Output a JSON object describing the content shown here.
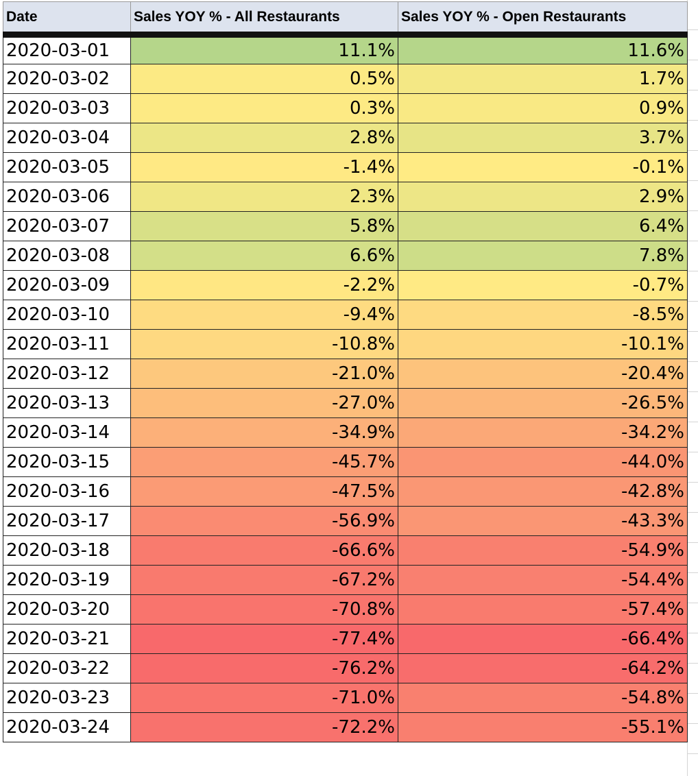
{
  "table": {
    "columns": [
      "Date",
      "Sales YOY % - All Restaurants",
      "Sales YOY % - Open Restaurants"
    ],
    "rows": [
      [
        "2020-03-01",
        "11.1%",
        "11.6%"
      ],
      [
        "2020-03-02",
        "0.5%",
        "1.7%"
      ],
      [
        "2020-03-03",
        "0.3%",
        "0.9%"
      ],
      [
        "2020-03-04",
        "2.8%",
        "3.7%"
      ],
      [
        "2020-03-05",
        "-1.4%",
        "-0.1%"
      ],
      [
        "2020-03-06",
        "2.3%",
        "2.9%"
      ],
      [
        "2020-03-07",
        "5.8%",
        "6.4%"
      ],
      [
        "2020-03-08",
        "6.6%",
        "7.8%"
      ],
      [
        "2020-03-09",
        "-2.2%",
        "-0.7%"
      ],
      [
        "2020-03-10",
        "-9.4%",
        "-8.5%"
      ],
      [
        "2020-03-11",
        "-10.8%",
        "-10.1%"
      ],
      [
        "2020-03-12",
        "-21.0%",
        "-20.4%"
      ],
      [
        "2020-03-13",
        "-27.0%",
        "-26.5%"
      ],
      [
        "2020-03-14",
        "-34.9%",
        "-34.2%"
      ],
      [
        "2020-03-15",
        "-45.7%",
        "-44.0%"
      ],
      [
        "2020-03-16",
        "-47.5%",
        "-42.8%"
      ],
      [
        "2020-03-17",
        "-56.9%",
        "-43.3%"
      ],
      [
        "2020-03-18",
        "-66.6%",
        "-54.9%"
      ],
      [
        "2020-03-19",
        "-67.2%",
        "-54.4%"
      ],
      [
        "2020-03-20",
        "-70.8%",
        "-57.4%"
      ],
      [
        "2020-03-21",
        "-77.4%",
        "-66.4%"
      ],
      [
        "2020-03-22",
        "-76.2%",
        "-64.2%"
      ],
      [
        "2020-03-23",
        "-71.0%",
        "-54.8%"
      ],
      [
        "2020-03-24",
        "-72.2%",
        "-55.1%"
      ]
    ]
  }
}
